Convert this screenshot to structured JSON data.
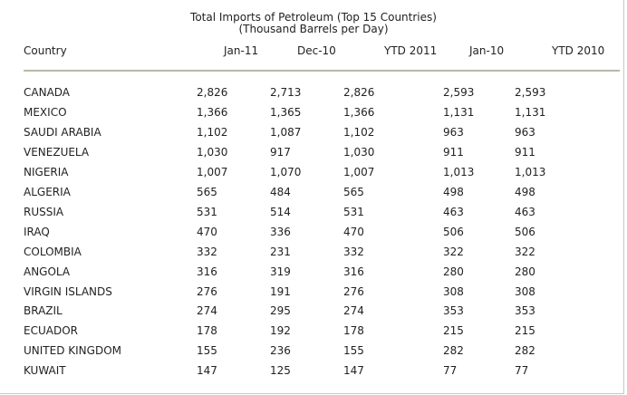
{
  "table": {
    "title": "Total Imports of Petroleum (Top 15 Countries)",
    "subtitle": "(Thousand Barrels per Day)",
    "headers": [
      "Country",
      "Jan-11",
      "Dec-10",
      "YTD 2011",
      "Jan-10",
      "YTD 2010"
    ],
    "rows": [
      [
        "CANADA",
        "2,826",
        "2,713",
        "2,826",
        "2,593",
        "2,593"
      ],
      [
        "MEXICO",
        "1,366",
        "1,365",
        "1,366",
        "1,131",
        "1,131"
      ],
      [
        "SAUDI ARABIA",
        "1,102",
        "1,087",
        "1,102",
        "963",
        "963"
      ],
      [
        "VENEZUELA",
        "1,030",
        "917",
        "1,030",
        "911",
        "911"
      ],
      [
        "NIGERIA",
        "1,007",
        "1,070",
        "1,007",
        "1,013",
        "1,013"
      ],
      [
        "ALGERIA",
        "565",
        "484",
        "565",
        "498",
        "498"
      ],
      [
        "RUSSIA",
        "531",
        "514",
        "531",
        "463",
        "463"
      ],
      [
        "IRAQ",
        "470",
        "336",
        "470",
        "506",
        "506"
      ],
      [
        "COLOMBIA",
        "332",
        "231",
        "332",
        "322",
        "322"
      ],
      [
        "ANGOLA",
        "316",
        "319",
        "316",
        "280",
        "280"
      ],
      [
        "VIRGIN ISLANDS",
        "276",
        "191",
        "276",
        "308",
        "308"
      ],
      [
        "BRAZIL",
        "274",
        "295",
        "274",
        "353",
        "353"
      ],
      [
        "ECUADOR",
        "178",
        "192",
        "178",
        "215",
        "215"
      ],
      [
        "UNITED KINGDOM",
        "155",
        "236",
        "155",
        "282",
        "282"
      ],
      [
        "KUWAIT",
        "147",
        "125",
        "147",
        "77",
        "77"
      ]
    ]
  }
}
